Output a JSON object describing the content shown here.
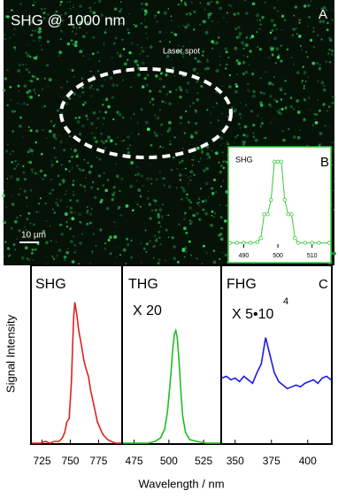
{
  "image_panel": {
    "title": "SHG @ 1000 nm",
    "panel_letter": "A",
    "annotation": "Laser spot",
    "scale_bar": "10 µm"
  },
  "figure": {
    "ylabel": "Signal Intensity",
    "xlabel": "Wavelength / nm"
  },
  "chart_data": [
    {
      "type": "line",
      "title": "SHG",
      "panel_letter": "B",
      "color": "#3cc83c",
      "markers": true,
      "x": [
        486,
        488,
        490,
        492,
        494,
        495,
        496,
        497,
        498,
        499,
        500,
        501,
        502,
        503,
        504,
        505,
        506,
        508,
        510,
        512,
        515
      ],
      "values": [
        0.05,
        0.05,
        0.05,
        0.05,
        0.06,
        0.1,
        0.35,
        0.35,
        0.5,
        0.9,
        0.9,
        0.9,
        0.5,
        0.35,
        0.35,
        0.1,
        0.05,
        0.05,
        0.05,
        0.05,
        0.05
      ],
      "xlim": [
        486,
        515
      ],
      "ylim": [
        0,
        1
      ],
      "xticks": [
        490,
        500,
        510
      ]
    },
    {
      "type": "line",
      "title": "SHG",
      "color": "#e02020",
      "x": [
        716,
        720,
        724,
        728,
        732,
        736,
        740,
        743,
        745,
        747,
        749,
        751,
        752,
        753,
        754,
        755,
        756,
        757,
        758,
        760,
        762,
        764,
        766,
        768,
        770,
        772,
        774,
        776,
        778,
        780,
        783,
        786,
        790,
        795
      ],
      "values": [
        0,
        0,
        0,
        0.01,
        0,
        0.01,
        0.01,
        0.03,
        0.06,
        0.12,
        0.14,
        0.35,
        0.55,
        0.72,
        0.8,
        0.76,
        0.72,
        0.66,
        0.62,
        0.55,
        0.47,
        0.42,
        0.38,
        0.3,
        0.24,
        0.18,
        0.12,
        0.09,
        0.06,
        0.04,
        0.02,
        0.01,
        0,
        0
      ],
      "xlim": [
        716,
        795
      ],
      "ylim": [
        0,
        1
      ],
      "xticks": [
        725,
        750,
        775
      ]
    },
    {
      "type": "line",
      "title": "THG",
      "annotation": "X 20",
      "color": "#22bb22",
      "x": [
        467,
        475,
        485,
        490,
        494,
        497,
        499,
        501,
        502,
        503,
        504,
        505,
        506,
        507,
        508,
        509,
        510,
        512,
        515,
        520,
        527,
        537
      ],
      "values": [
        0,
        0,
        0,
        0.01,
        0.03,
        0.08,
        0.18,
        0.35,
        0.45,
        0.55,
        0.62,
        0.64,
        0.6,
        0.5,
        0.38,
        0.25,
        0.15,
        0.06,
        0.02,
        0.01,
        0,
        0
      ],
      "xlim": [
        467,
        537
      ],
      "ylim": [
        0,
        1
      ],
      "xticks": [
        475,
        500,
        525
      ]
    },
    {
      "type": "line",
      "title": "FHG",
      "panel_letter": "C",
      "annotation": "X 5•10",
      "annotation_exponent": "4",
      "color": "#1a1ae0",
      "x": [
        341,
        344,
        347,
        350,
        353,
        356,
        359,
        362,
        365,
        368,
        371,
        374,
        377,
        380,
        383,
        386,
        389,
        392,
        395,
        398,
        401,
        404,
        407,
        410,
        413,
        416
      ],
      "values": [
        0.37,
        0.38,
        0.36,
        0.37,
        0.35,
        0.38,
        0.36,
        0.34,
        0.4,
        0.45,
        0.6,
        0.5,
        0.4,
        0.35,
        0.33,
        0.31,
        0.32,
        0.33,
        0.32,
        0.34,
        0.35,
        0.36,
        0.34,
        0.37,
        0.38,
        0.36
      ],
      "xlim": [
        341,
        416
      ],
      "ylim": [
        0,
        1
      ],
      "xticks": [
        350,
        375,
        400
      ]
    }
  ]
}
